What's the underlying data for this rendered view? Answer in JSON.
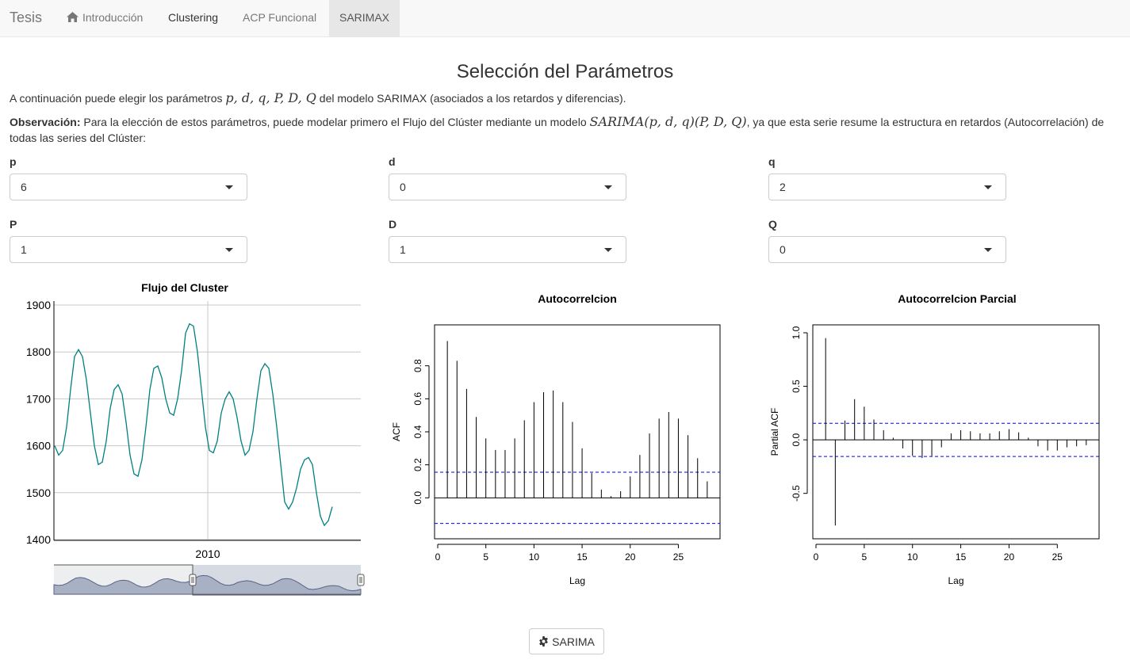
{
  "navbar": {
    "brand": "Tesis",
    "items": [
      {
        "label": "Introducción",
        "icon": "home-icon"
      },
      {
        "label": "Clustering"
      },
      {
        "label": "ACP Funcional"
      },
      {
        "label": "SARIMAX",
        "active": true
      }
    ]
  },
  "page": {
    "title": "Selección del Parámetros",
    "intro_prefix": "A continuación puede elegir los parámetros ",
    "intro_math": "p, d, q, P, D, Q",
    "intro_suffix": " del modelo SARIMAX (asociados a los retardos y diferencias).",
    "obs_label": "Observación:",
    "obs_prefix": " Para la elección de estos parámetros, puede modelar primero el Flujo del Clúster mediante un modelo ",
    "obs_math": "SARIMA(p, d, q)(P, D, Q)",
    "obs_suffix": ", ya que esta serie resume la estructura en retardos (Autocorrelación) de",
    "obs_line2": "todas las series del Clúster:"
  },
  "selectors": [
    {
      "label": "p",
      "value": "6"
    },
    {
      "label": "d",
      "value": "0"
    },
    {
      "label": "q",
      "value": "2"
    },
    {
      "label": "P",
      "value": "1"
    },
    {
      "label": "D",
      "value": "1"
    },
    {
      "label": "Q",
      "value": "0"
    }
  ],
  "chart_data": [
    {
      "type": "line",
      "title": "Flujo del Cluster",
      "xlabel": "",
      "ylabel": "",
      "x_tick_labels": [
        "2010"
      ],
      "y_tick_labels": [
        "1400",
        "1500",
        "1600",
        "1700",
        "1800",
        "1900"
      ],
      "ylim": [
        1390,
        1905
      ],
      "grid": true,
      "color": "#008080",
      "range_selector": true,
      "values": [
        1600,
        1580,
        1590,
        1640,
        1720,
        1790,
        1805,
        1790,
        1740,
        1670,
        1600,
        1560,
        1565,
        1610,
        1680,
        1720,
        1730,
        1710,
        1650,
        1580,
        1540,
        1535,
        1570,
        1640,
        1720,
        1765,
        1770,
        1745,
        1700,
        1670,
        1665,
        1700,
        1760,
        1840,
        1860,
        1855,
        1800,
        1720,
        1640,
        1590,
        1585,
        1610,
        1670,
        1700,
        1715,
        1700,
        1660,
        1610,
        1580,
        1590,
        1630,
        1700,
        1760,
        1775,
        1765,
        1710,
        1640,
        1560,
        1480,
        1465,
        1480,
        1510,
        1550,
        1570,
        1575,
        1560,
        1500,
        1450,
        1430,
        1440,
        1470
      ]
    },
    {
      "type": "bar",
      "title": "Autocorrelcion",
      "xlabel": "Lag",
      "ylabel": "ACF",
      "x_tick_labels": [
        "0",
        "5",
        "10",
        "15",
        "20",
        "25"
      ],
      "y_tick_labels": [
        "0.0",
        "0.2",
        "0.4",
        "0.6",
        "0.8"
      ],
      "xlim": [
        0,
        29
      ],
      "ylim": [
        -0.2,
        1.0
      ],
      "lags": [
        1,
        2,
        3,
        4,
        5,
        6,
        7,
        8,
        9,
        10,
        11,
        12,
        13,
        14,
        15,
        16,
        17,
        18,
        19,
        20,
        21,
        22,
        23,
        24,
        25,
        26,
        27,
        28
      ],
      "values": [
        0.95,
        0.83,
        0.66,
        0.49,
        0.36,
        0.29,
        0.29,
        0.36,
        0.47,
        0.58,
        0.64,
        0.65,
        0.58,
        0.46,
        0.3,
        0.15,
        0.05,
        0.01,
        0.04,
        0.13,
        0.26,
        0.39,
        0.48,
        0.52,
        0.48,
        0.38,
        0.24,
        0.1
      ],
      "ci": 0.155
    },
    {
      "type": "bar",
      "title": "Autocorrelcion Parcial",
      "xlabel": "Lag",
      "ylabel": "Partial ACF",
      "x_tick_labels": [
        "0",
        "5",
        "10",
        "15",
        "20",
        "25"
      ],
      "y_tick_labels": [
        "-0.5",
        "0.0",
        "0.5",
        "1.0"
      ],
      "xlim": [
        0,
        29
      ],
      "ylim": [
        -0.85,
        1.0
      ],
      "lags": [
        1,
        2,
        3,
        4,
        5,
        6,
        7,
        8,
        9,
        10,
        11,
        12,
        13,
        14,
        15,
        16,
        17,
        18,
        19,
        20,
        21,
        22,
        23,
        24,
        25,
        26,
        27,
        28
      ],
      "values": [
        0.95,
        -0.8,
        0.18,
        0.38,
        0.31,
        0.19,
        0.09,
        0.02,
        -0.08,
        -0.15,
        -0.17,
        -0.15,
        -0.07,
        0.06,
        0.09,
        0.08,
        0.06,
        0.06,
        0.08,
        0.1,
        0.07,
        0.02,
        -0.06,
        -0.1,
        -0.1,
        -0.07,
        -0.06,
        -0.05
      ],
      "ci": 0.155
    }
  ],
  "button": {
    "label": "SARIMA",
    "icon": "gear-icon"
  },
  "colors": {
    "line": "#008080",
    "ci": "#0000ff",
    "nav_active": "#e7e7e7"
  }
}
